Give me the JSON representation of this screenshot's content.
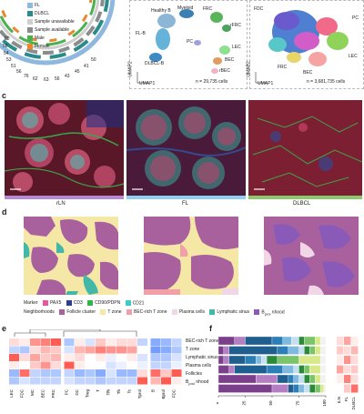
{
  "panel_a": {
    "legend": [
      "FL",
      "DLBCL",
      "Sample unavailable",
      "Sample available",
      "Male",
      "Female"
    ],
    "legend_colors": {
      "FL": "#8fb8df",
      "DLBCL": "#2d8a8a",
      "Sample unavailable": "#cfcfcf",
      "Sample available": "#8c8c8c",
      "Male": "#4caf50",
      "Female": "#e8872f"
    },
    "ring_numbers_left": [
      "60",
      "58",
      "54",
      "53",
      "51"
    ],
    "ring_numbers_bottom": [
      "56",
      "76",
      "62",
      "63",
      "56",
      "43"
    ],
    "ring_numbers_right": [
      "45",
      "41",
      "50"
    ]
  },
  "panel_b1": {
    "labels": [
      "Healthy B",
      "Myeloid",
      "FRC",
      "rFRC",
      "FL-B",
      "PC",
      "LEC",
      "DLBCL-B",
      "BEC",
      "rBEC"
    ],
    "cell_count": "n = 29,735 cells",
    "umap1": "UMAP1",
    "umap2": "UMAP2",
    "cluster_colors": {
      "healthy_b": "#8cb6d6",
      "myeloid": "#3c7fb1",
      "frc": "#5ab55a",
      "rfrc": "#4da35f",
      "flb": "#66b3d9",
      "pc": "#a0a0e0",
      "lec": "#8de08d",
      "dlbcl": "#3f8ac4",
      "bec": "#e39b5f",
      "rbec": "#f2b3c2"
    }
  },
  "panel_b2": {
    "labels": [
      "FDC",
      "PC",
      "LEC",
      "FRC",
      "BEC"
    ],
    "cell_count": "n = 3,681,735 cells",
    "umap1": "UMAP1",
    "umap2": "UMAP2"
  },
  "panel_c": {
    "label": "c",
    "titles": [
      "rLN",
      "FL",
      "DLBCL"
    ],
    "bar_colors": [
      "#b48ad6",
      "#8fd0f0",
      "#8cc96b"
    ]
  },
  "panel_d": {
    "label": "d",
    "marker_title": "Marker",
    "markers": [
      {
        "name": "PAX5",
        "color": "#e8559a"
      },
      {
        "name": "CD3",
        "color": "#2a3f8f"
      },
      {
        "name": "CD90/PDPN",
        "color": "#35b34a"
      },
      {
        "name": "CD21",
        "color": "#42c9c2"
      }
    ],
    "neighborhoods_title": "Neighborhoods",
    "neighborhoods": [
      {
        "name": "Follicle cluster",
        "color": "#a9619e"
      },
      {
        "name": "T zone",
        "color": "#f5e7a6"
      },
      {
        "name": "BEC-rich T zone",
        "color": "#f2a0a8"
      },
      {
        "name": "Plasma cells",
        "color": "#f0d6e6"
      },
      {
        "name": "Lymphatic sinus",
        "color": "#43b7a8"
      },
      {
        "name": "B",
        "sub": "prol",
        "tail": " nhood",
        "color": "#8a5ab8"
      }
    ]
  },
  "panel_e": {
    "label": "e",
    "row_labels": [
      "BEC-rich T zone",
      "T zone",
      "Lymphatic sinus",
      "Plasma cells",
      "Follicles",
      "B",
      "prol",
      "nhood"
    ],
    "col_labels": [
      "LEC",
      "FDC",
      "MC",
      "BEC",
      "FRC",
      "PC",
      "DC",
      "Treg",
      "T",
      "Tfh",
      "Th",
      "Tc",
      "Tprol",
      "B",
      "Bprol",
      "FDC"
    ],
    "heatmap": [
      [
        0.2,
        0.1,
        0.6,
        0.7,
        0.9,
        -0.4,
        0.1,
        -0.2,
        0.3,
        0.1,
        0.2,
        0.2,
        -0.3,
        -0.6,
        -0.5,
        -0.3
      ],
      [
        -0.3,
        -0.4,
        0.2,
        0.4,
        0.3,
        -0.2,
        0.4,
        0.5,
        0.7,
        0.6,
        0.6,
        0.5,
        0.0,
        -0.7,
        -0.6,
        -0.4
      ],
      [
        0.9,
        0.2,
        0.5,
        0.3,
        0.4,
        0.1,
        0.2,
        0.0,
        0.1,
        -0.1,
        0.0,
        0.1,
        -0.2,
        -0.4,
        -0.4,
        -0.2
      ],
      [
        0.1,
        0.0,
        0.3,
        0.6,
        0.2,
        0.9,
        0.1,
        0.0,
        0.0,
        -0.2,
        -0.1,
        0.0,
        -0.1,
        -0.3,
        -0.3,
        -0.1
      ],
      [
        -0.5,
        0.8,
        -0.3,
        -0.4,
        -0.4,
        -0.3,
        -0.5,
        -0.4,
        -0.6,
        -0.2,
        -0.5,
        -0.5,
        0.2,
        0.8,
        0.3,
        0.9
      ],
      [
        -0.4,
        -0.2,
        -0.3,
        -0.3,
        -0.3,
        -0.2,
        -0.3,
        -0.3,
        -0.4,
        -0.3,
        -0.3,
        -0.3,
        0.9,
        0.4,
        0.9,
        0.1
      ]
    ]
  },
  "panel_f": {
    "label": "f",
    "row_labels": [
      "BEC-rich T zone",
      "T zone",
      "Lymphatic sinus",
      "Plasma cells",
      "Follicles",
      "B",
      "prol",
      "nhood"
    ],
    "x_ticks": [
      "0",
      "25",
      "50",
      "75",
      "100"
    ],
    "stack_colors": [
      "#7c3f8c",
      "#b57fc3",
      "#1f5f8f",
      "#2a7fb8",
      "#7fb9e0",
      "#c4dff2",
      "#2a8a3a",
      "#7cc46a",
      "#d8e98a",
      "#f2f2f2"
    ],
    "stacked": [
      [
        0.15,
        0.1,
        0.25,
        0.1,
        0.08,
        0.07,
        0.05,
        0.1,
        0.05,
        0.05
      ],
      [
        0.05,
        0.05,
        0.45,
        0.1,
        0.1,
        0.05,
        0.05,
        0.05,
        0.05,
        0.05
      ],
      [
        0.05,
        0.05,
        0.15,
        0.1,
        0.05,
        0.05,
        0.1,
        0.2,
        0.2,
        0.05
      ],
      [
        0.1,
        0.05,
        0.3,
        0.15,
        0.1,
        0.05,
        0.05,
        0.05,
        0.1,
        0.05
      ],
      [
        0.35,
        0.2,
        0.1,
        0.05,
        0.05,
        0.05,
        0.05,
        0.05,
        0.05,
        0.05
      ],
      [
        0.5,
        0.15,
        0.05,
        0.05,
        0.05,
        0.05,
        0.05,
        0.05,
        0.03,
        0.02
      ]
    ],
    "right_cols": [
      "rLN",
      "FL",
      "DLBCL"
    ],
    "right_heat": [
      [
        0.2,
        0.5,
        0.1
      ],
      [
        0.3,
        0.2,
        0.4
      ],
      [
        0.1,
        0.6,
        0.2
      ],
      [
        0.5,
        0.2,
        0.3
      ],
      [
        0.1,
        0.7,
        0.2
      ],
      [
        0.0,
        0.3,
        0.8
      ]
    ]
  }
}
